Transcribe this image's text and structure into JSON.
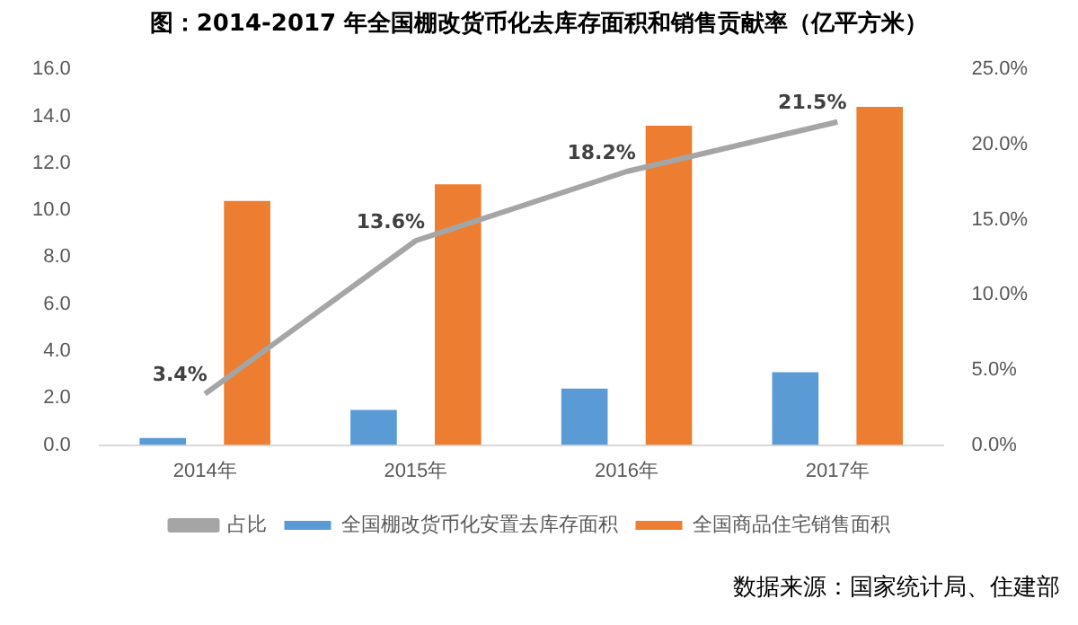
{
  "chart_data": {
    "type": "bar",
    "title": "图：2014-2017 年全国棚改货币化去库存面积和销售贡献率（亿平方米）",
    "categories": [
      "2014年",
      "2015年",
      "2016年",
      "2017年"
    ],
    "series": [
      {
        "name": "全国棚改货币化安置去库存面积",
        "color": "#5b9bd5",
        "values": [
          0.3,
          1.5,
          2.4,
          3.1
        ]
      },
      {
        "name": "全国商品住宅销售面积",
        "color": "#ed7d31",
        "values": [
          10.4,
          11.1,
          13.6,
          14.4
        ]
      },
      {
        "name": "占比",
        "type": "line",
        "axis": "y2",
        "color": "#a5a5a5",
        "values": [
          3.4,
          13.6,
          18.2,
          21.5
        ],
        "value_labels": [
          "3.4%",
          "13.6%",
          "18.2%",
          "21.5%"
        ]
      }
    ],
    "ylim": [
      0,
      16
    ],
    "yticks": [
      {
        "value": 0,
        "label": "0.0"
      },
      {
        "value": 2,
        "label": "2.0"
      },
      {
        "value": 4,
        "label": "4.0"
      },
      {
        "value": 6,
        "label": "6.0"
      },
      {
        "value": 8,
        "label": "8.0"
      },
      {
        "value": 10,
        "label": "10.0"
      },
      {
        "value": 12,
        "label": "12.0"
      },
      {
        "value": 14,
        "label": "14.0"
      },
      {
        "value": 16,
        "label": "16.0"
      }
    ],
    "y2lim": [
      0,
      25
    ],
    "y2ticks": [
      {
        "value": 0,
        "label": "0.0%"
      },
      {
        "value": 5,
        "label": "5.0%"
      },
      {
        "value": 10,
        "label": "10.0%"
      },
      {
        "value": 15,
        "label": "15.0%"
      },
      {
        "value": 20,
        "label": "20.0%"
      },
      {
        "value": 25,
        "label": "25.0%"
      }
    ],
    "grid": false,
    "legend": "bottom",
    "marker": "none",
    "annotations": [
      "数据来源：国家统计局、住建部"
    ]
  }
}
